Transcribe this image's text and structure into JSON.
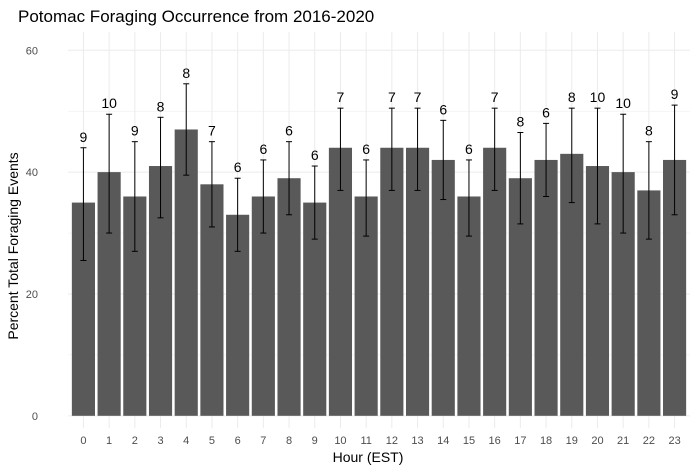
{
  "chart_data": {
    "type": "bar",
    "title": "Potomac Foraging Occurrence from 2016-2020",
    "xlabel": "Hour (EST)",
    "ylabel": "Percent Total Foraging Events",
    "categories": [
      "0",
      "1",
      "2",
      "3",
      "4",
      "5",
      "6",
      "7",
      "8",
      "9",
      "10",
      "11",
      "12",
      "13",
      "14",
      "15",
      "16",
      "17",
      "18",
      "19",
      "20",
      "21",
      "22",
      "23"
    ],
    "values": [
      35,
      40,
      36,
      41,
      47,
      38,
      33,
      36,
      39,
      35,
      44,
      36,
      44,
      44,
      42,
      36,
      44,
      39,
      42,
      43,
      41,
      40,
      37,
      42
    ],
    "error_low": [
      25.5,
      30,
      27,
      32.5,
      39.5,
      31,
      27,
      30,
      33,
      29,
      37,
      29.5,
      37,
      37,
      35.5,
      29.5,
      37,
      31.5,
      36,
      35,
      31.5,
      30,
      29,
      33
    ],
    "error_high": [
      44,
      49.5,
      45,
      49,
      54.5,
      45,
      39,
      42,
      45,
      41,
      50.5,
      42,
      50.5,
      50.5,
      48.5,
      42,
      50.5,
      46.5,
      48,
      50.5,
      50.5,
      49.5,
      45,
      51
    ],
    "bar_labels": [
      "9",
      "10",
      "9",
      "8",
      "8",
      "7",
      "6",
      "6",
      "6",
      "6",
      "7",
      "6",
      "7",
      "7",
      "6",
      "6",
      "7",
      "8",
      "6",
      "8",
      "10",
      "10",
      "8",
      "9"
    ],
    "yticks": [
      0,
      20,
      40,
      60
    ],
    "ylim": [
      -2,
      63
    ],
    "grid": true,
    "colors": {
      "bar": "#595959",
      "grid": "#ebebeb",
      "error_bar": "#000000"
    }
  }
}
